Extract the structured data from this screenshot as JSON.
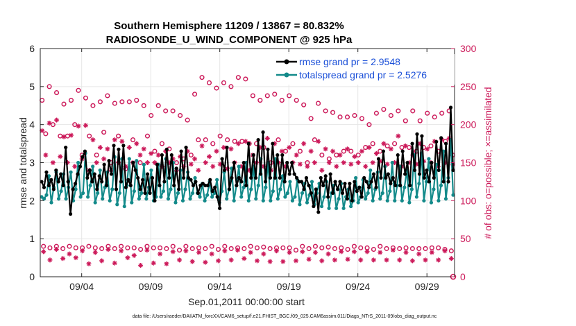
{
  "colors": {
    "rmse": "#000000",
    "spread": "#138a8a",
    "obs": "#cc1a5a",
    "legend_text": "#1a4fd8",
    "grid": "#e6e6e6"
  },
  "chart_data": {
    "type": "line",
    "title_line1": "Southern Hemisphere 11209 / 13867 = 80.832%",
    "title_line2": "RADIOSONDE_U_WIND_COMPONENT @ 925 hPa",
    "xlabel": "Sep.01,2011 00:00:00 start",
    "ylabel": "rmse and totalspread",
    "y2label": "# of obs: o=possible; ×=assimilated",
    "footnote": "data file: /Users/raeder/DAI/ATM_forcXX/CAM6_setup/f.e21.FHIST_BGC.f09_025.CAM6assim.011/Diags_NTrS_2011-09/obs_diag_output.nc",
    "xlim": [
      1,
      31
    ],
    "ylim": [
      0,
      6
    ],
    "y2lim": [
      0,
      300
    ],
    "xticks": [
      4,
      9,
      14,
      19,
      24,
      29
    ],
    "xtick_labels": [
      "09/04",
      "09/09",
      "09/14",
      "09/19",
      "09/24",
      "09/29"
    ],
    "yticks": [
      0,
      1,
      2,
      3,
      4,
      5,
      6
    ],
    "ytick_labels": [
      "0",
      "1",
      "2",
      "3",
      "4",
      "5",
      "6"
    ],
    "y2ticks": [
      0,
      50,
      100,
      150,
      200,
      250,
      300
    ],
    "y2tick_labels": [
      "0",
      "50",
      "100",
      "150",
      "200",
      "250",
      "300"
    ],
    "legend": [
      {
        "name": "rmse grand pr = 2.9548"
      },
      {
        "name": "totalspread grand pr = 2.5276"
      }
    ],
    "rmse": [
      2.5,
      2.35,
      2.75,
      2.4,
      2.55,
      2.3,
      2.8,
      2.5,
      2.7,
      2.4,
      3.4,
      2.5,
      1.65,
      2.3,
      2.45,
      2.7,
      2.9,
      3.15,
      3.3,
      2.6,
      2.8,
      2.5,
      2.7,
      2.3,
      2.65,
      2.5,
      2.95,
      2.4,
      3.05,
      2.7,
      3.45,
      2.3,
      3.35,
      2.5,
      3.45,
      2.35,
      2.55,
      2.4,
      3.0,
      2.8,
      2.6,
      2.3,
      2.55,
      2.2,
      2.7,
      2.2,
      2.6,
      2.0,
      2.95,
      2.4,
      3.2,
      2.5,
      3.35,
      2.6,
      3.2,
      2.4,
      2.85,
      2.3,
      3.3,
      2.6,
      3.4,
      2.6,
      2.55,
      2.4,
      2.5,
      2.2,
      2.4,
      2.45,
      2.4,
      2.4,
      2.55,
      2.25,
      2.35,
      2.1,
      1.8,
      3.1,
      2.8,
      3.4,
      2.3,
      2.6,
      3.0,
      2.4,
      2.6,
      2.5,
      3.0,
      2.4,
      3.5,
      2.6,
      3.2,
      2.6,
      3.6,
      2.7,
      3.8,
      2.5,
      3.35,
      2.6,
      3.5,
      2.6,
      3.2,
      2.6,
      3.2,
      2.5,
      3.0,
      2.7,
      3.0,
      2.7,
      2.6,
      2.5,
      2.5,
      2.3,
      2.6,
      2.4,
      2.2,
      1.85,
      2.3,
      1.7,
      2.6,
      2.4,
      2.65,
      2.1,
      2.7,
      2.2,
      2.5,
      2.3,
      2.5,
      2.2,
      2.45,
      2.05,
      2.45,
      2.0,
      2.5,
      2.25,
      2.35,
      2.1,
      2.6,
      2.5,
      2.35,
      2.5,
      2.7,
      2.35,
      3.1,
      2.6,
      3.3,
      2.6,
      2.7,
      2.45,
      2.6,
      2.4,
      3.2,
      2.4,
      3.3,
      2.7,
      3.0,
      2.4,
      3.5,
      2.8,
      3.75,
      2.7,
      3.7,
      2.6,
      2.8,
      2.5,
      3.0,
      2.6,
      3.55,
      2.8,
      3.65,
      2.5,
      3.5,
      2.5,
      4.45,
      2.8
    ],
    "totalspread": [
      2.1,
      2.05,
      2.15,
      2.65,
      1.95,
      2.35,
      2.75,
      2.05,
      2.25,
      2.7,
      2.05,
      2.35,
      2.75,
      2.0,
      2.3,
      3.0,
      2.1,
      2.2,
      3.25,
      2.1,
      2.4,
      2.9,
      1.95,
      2.2,
      2.8,
      2.05,
      2.35,
      2.75,
      2.0,
      2.3,
      3.15,
      1.9,
      2.2,
      3.1,
      1.85,
      2.4,
      3.1,
      1.95,
      2.25,
      3.05,
      2.05,
      2.2,
      2.95,
      2.05,
      2.35,
      2.8,
      2.0,
      2.1,
      2.95,
      2.1,
      2.25,
      3.1,
      2.05,
      2.3,
      3.0,
      1.95,
      2.2,
      2.8,
      2.0,
      2.3,
      2.75,
      2.05,
      2.2,
      2.6,
      2.2,
      2.1,
      2.45,
      2.0,
      2.15,
      2.5,
      2.1,
      2.2,
      2.55,
      1.95,
      2.25,
      2.75,
      2.05,
      2.3,
      2.85,
      2.0,
      2.4,
      2.9,
      2.1,
      2.35,
      3.0,
      2.0,
      2.3,
      2.9,
      2.05,
      2.4,
      3.1,
      2.0,
      2.35,
      3.0,
      2.0,
      2.25,
      3.1,
      2.05,
      2.3,
      2.65,
      2.1,
      2.2,
      2.5,
      2.0,
      2.1,
      2.55,
      1.9,
      2.2,
      2.45,
      1.95,
      2.15,
      2.5,
      1.9,
      2.2,
      2.45,
      1.85,
      2.1,
      2.5,
      1.8,
      2.2,
      2.4,
      1.8,
      2.05,
      2.45,
      1.8,
      2.1,
      2.3,
      1.85,
      2.0,
      2.6,
      1.95,
      2.1,
      2.55,
      2.05,
      2.2,
      2.8,
      2.0,
      2.3,
      2.75,
      2.05,
      2.2,
      2.9,
      2.0,
      2.25,
      3.0,
      2.0,
      2.4,
      2.9,
      2.0,
      2.35,
      2.8,
      1.95,
      2.3,
      3.2,
      2.1,
      2.45,
      3.25,
      2.0,
      2.5,
      3.1,
      1.95,
      2.3,
      2.95,
      2.0,
      2.4,
      3.3,
      2.05,
      2.6,
      3.6,
      2.15
    ],
    "obs_possible": [
      232,
      188,
      250,
      200,
      242,
      185,
      227,
      185,
      232,
      200,
      245,
      160,
      235,
      185,
      225,
      160,
      230,
      190,
      238,
      150,
      228,
      185,
      230,
      142,
      230,
      180,
      232,
      150,
      225,
      185,
      212,
      165,
      225,
      175,
      218,
      168,
      218,
      150,
      212,
      155,
      206,
      160,
      240,
      180,
      262,
      180,
      255,
      175,
      248,
      185,
      255,
      180,
      250,
      178,
      262,
      178,
      260,
      175,
      238,
      175,
      232,
      170,
      238,
      150,
      240,
      180,
      232,
      165,
      238,
      175,
      232,
      165,
      226,
      150,
      208,
      180,
      228,
      160,
      218,
      155,
      216,
      160,
      210,
      165,
      210,
      165,
      212,
      160,
      208,
      170,
      200,
      175,
      215,
      165,
      220,
      172,
      212,
      175,
      218,
      170,
      205,
      170,
      218,
      165,
      205,
      170,
      215,
      172,
      210,
      165,
      215,
      178,
      218,
      160
    ],
    "obs_assimilated": [
      192,
      160,
      202,
      150,
      206,
      158,
      184,
      150,
      186,
      145,
      198,
      155,
      199,
      140,
      180,
      150,
      170,
      155,
      168,
      140,
      180,
      150,
      178,
      145,
      170,
      150,
      175,
      160,
      168,
      150,
      162,
      150,
      160,
      145,
      165,
      150,
      155,
      140,
      158,
      145,
      165,
      148,
      155,
      140,
      172,
      150,
      158,
      145,
      165,
      148,
      170,
      142,
      168,
      150,
      175,
      145,
      178,
      140,
      160,
      150,
      170,
      145,
      182,
      140,
      175,
      150,
      165,
      145,
      170,
      150,
      160,
      148,
      175,
      145,
      165,
      150,
      178,
      140,
      168,
      150,
      165,
      145,
      160,
      150,
      168,
      148,
      158,
      150,
      165,
      145,
      170,
      150,
      162,
      152,
      175,
      148,
      168,
      150,
      185,
      145,
      172,
      150,
      160,
      148,
      175,
      152,
      168,
      150,
      178,
      145,
      180,
      150,
      182,
      148
    ],
    "obs_possible_low": [
      40,
      38,
      40,
      37,
      40,
      38,
      38,
      40,
      38,
      37,
      40,
      37,
      40,
      38,
      38,
      36,
      40,
      38,
      38,
      37,
      40,
      35,
      40,
      37,
      38,
      37,
      40,
      36,
      40,
      37,
      38,
      37,
      40,
      38,
      39,
      37,
      38,
      38,
      38,
      35,
      40,
      37,
      40,
      38,
      39,
      37,
      38,
      36,
      40,
      38,
      38,
      36,
      40,
      37,
      38,
      37,
      38,
      37,
      37,
      37,
      38,
      38,
      36,
      34
    ],
    "obs_assimilated_low": [
      33,
      22,
      36,
      24,
      30,
      25,
      34,
      17,
      32,
      21,
      36,
      18,
      34,
      25,
      28,
      15,
      35,
      18,
      30,
      17,
      33,
      22,
      34,
      20,
      32,
      19,
      30,
      21,
      34,
      22,
      35,
      24,
      32,
      21,
      30,
      20,
      34,
      20,
      32,
      21,
      33,
      23,
      32,
      21,
      30,
      22,
      33,
      23,
      33,
      22,
      33,
      22,
      32,
      22,
      35,
      22,
      32,
      21,
      30,
      22,
      32,
      22,
      34,
      24
    ],
    "last_point_obs": 0
  }
}
